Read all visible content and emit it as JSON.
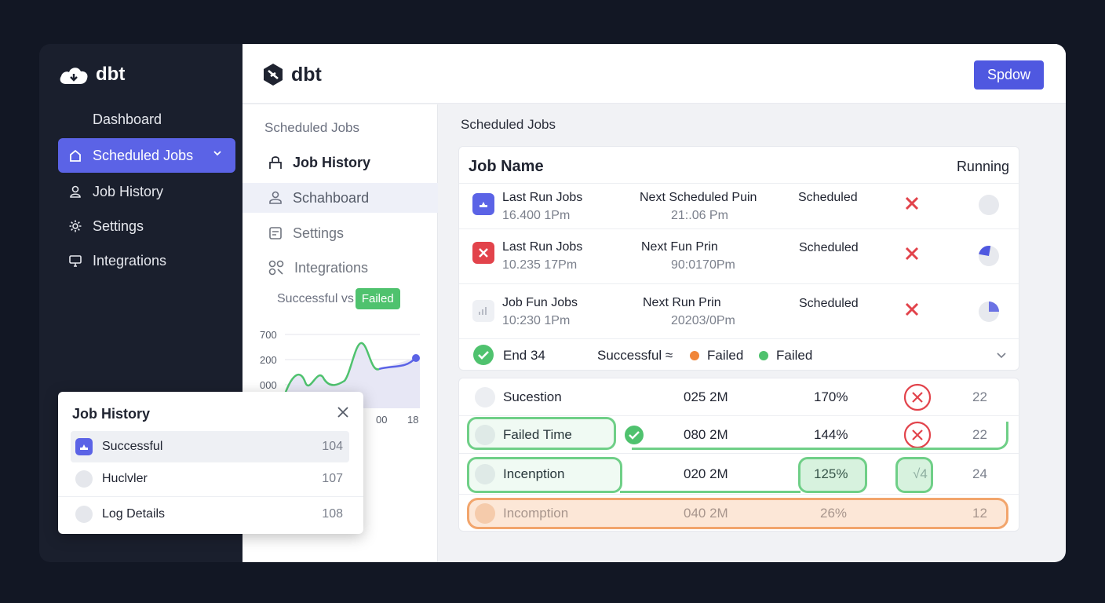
{
  "brand": {
    "name": "dbt"
  },
  "dark_sidebar": {
    "items": [
      {
        "label": "Dashboard",
        "icon": "none"
      },
      {
        "label": "Scheduled Jobs",
        "icon": "home-icon"
      },
      {
        "label": "Job History",
        "icon": "user-icon"
      },
      {
        "label": "Settings",
        "icon": "gear-icon"
      },
      {
        "label": "Integrations",
        "icon": "monitor-icon"
      }
    ]
  },
  "topbar": {
    "button_label": "Spdow"
  },
  "nav2": {
    "title": "Scheduled Jobs",
    "items": [
      {
        "label": "Job History"
      },
      {
        "label": "Schahboard"
      },
      {
        "label": "Settings"
      },
      {
        "label": "Integrations"
      }
    ],
    "legend_text": "Successful vs",
    "legend_pill": "Failed"
  },
  "chart_data": {
    "type": "area",
    "y_tick_labels": [
      "700",
      "200",
      "000"
    ],
    "x_tick_labels": [
      "00",
      "18"
    ]
  },
  "content": {
    "title": "Scheduled Jobs",
    "table_headers": {
      "job_name": "Job Name",
      "running": "Running"
    },
    "jobs": [
      {
        "name": "Last Run Jobs",
        "time": "16.400 1Pm",
        "next_label": "Next Scheduled Puin",
        "next_time": "21:.06 Pm",
        "status": "Scheduled",
        "progress": 0.0
      },
      {
        "name": "Last Run Jobs",
        "time": "10.235 17Pm",
        "next_label": "Next Fun Prin",
        "next_time": "90:0170Pm",
        "status": "Scheduled",
        "progress": 0.25
      },
      {
        "name": "Job Fun Jobs",
        "time": "10:230 1Pm",
        "next_label": "Next Run Prin",
        "next_time": "20203/0Pm",
        "status": "Scheduled",
        "progress": 0.25
      }
    ],
    "summary": {
      "end": "End 34",
      "successful": "Successful ≈",
      "failed_1": "Failed",
      "failed_2": "Failed"
    },
    "metrics": [
      {
        "name": "Sucestion",
        "value": "025 2M",
        "pct": "170%",
        "num": "22"
      },
      {
        "name": "Failed Time",
        "value": "080 2M",
        "pct": "144%",
        "num": "22"
      },
      {
        "name": "Incenption",
        "value": "020 2M",
        "pct": "125%",
        "badge": "√4",
        "num": "24"
      },
      {
        "name": "Incomption",
        "value": "040 2M",
        "pct": "26%",
        "num": "12"
      }
    ]
  },
  "popup": {
    "title": "Job History",
    "rows": [
      {
        "name": "Successful",
        "count": "104"
      },
      {
        "name": "Huclvler",
        "count": "107"
      },
      {
        "name": "Log Details",
        "count": "108"
      }
    ]
  },
  "colors": {
    "accent": "#5b63e6",
    "success": "#4fc26e",
    "danger": "#e2434b",
    "warning": "#f0863a"
  }
}
